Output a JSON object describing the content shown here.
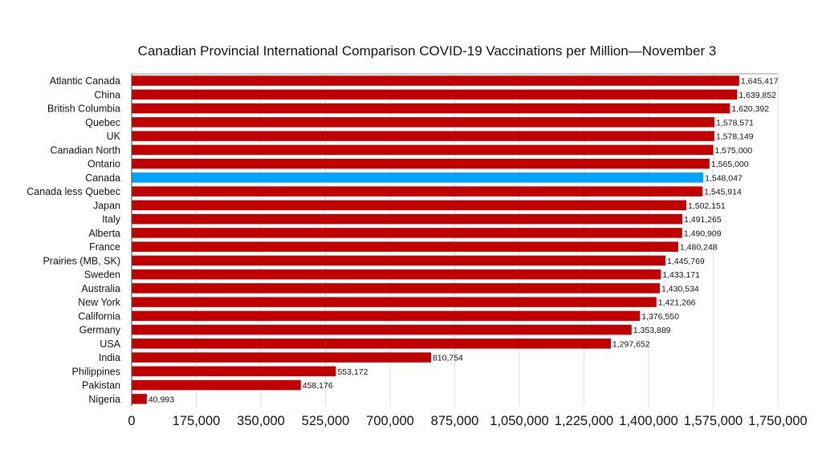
{
  "chart_data": {
    "type": "bar",
    "orientation": "horizontal",
    "title": "Canadian Provincial International Comparison COVID-19 Vaccinations per Million—November 3",
    "xlabel": "",
    "ylabel": "",
    "xlim": [
      0,
      1750000
    ],
    "grid": true,
    "legend": "none",
    "x_ticks": [
      "0",
      "175,000",
      "350,000",
      "525,000",
      "700,000",
      "875,000",
      "1,050,000",
      "1,225,000",
      "1,400,000",
      "1,575,000",
      "1,750,000"
    ],
    "x_tick_values": [
      0,
      175000,
      350000,
      525000,
      700000,
      875000,
      1050000,
      1225000,
      1400000,
      1575000,
      1750000
    ],
    "colors": {
      "default": "#C00000",
      "highlight": "#00A2FF"
    },
    "categories": [
      "Atlantic Canada",
      "China",
      "British Columbia",
      "Quebec",
      "UK",
      "Canadian North",
      "Ontario",
      "Canada",
      "Canada less Quebec",
      "Japan",
      "Italy",
      "Alberta",
      "France",
      "Prairies (MB, SK)",
      "Sweden",
      "Australia",
      "New York",
      "California",
      "Germany",
      "USA",
      "India",
      "Philippines",
      "Pakistan",
      "Nigeria"
    ],
    "values": [
      1645417,
      1639852,
      1620392,
      1578571,
      1578149,
      1575000,
      1565000,
      1548047,
      1545914,
      1502151,
      1491265,
      1490909,
      1480248,
      1445769,
      1433171,
      1430534,
      1421266,
      1376550,
      1353889,
      1297652,
      810754,
      553172,
      458176,
      40993
    ],
    "value_labels": [
      "1,645,417",
      "1,639,852",
      "1,620,392",
      "1,578,571",
      "1,578,149",
      "1,575,000",
      "1,565,000",
      "1,548,047",
      "1,545,914",
      "1,502,151",
      "1,491,265",
      "1,490,909",
      "1,480,248",
      "1,445,769",
      "1,433,171",
      "1,430,534",
      "1,421,266",
      "1,376,550",
      "1,353,889",
      "1,297,652",
      "810,754",
      "553,172",
      "458,176",
      "40,993"
    ],
    "highlighted": [
      "Canada"
    ]
  }
}
